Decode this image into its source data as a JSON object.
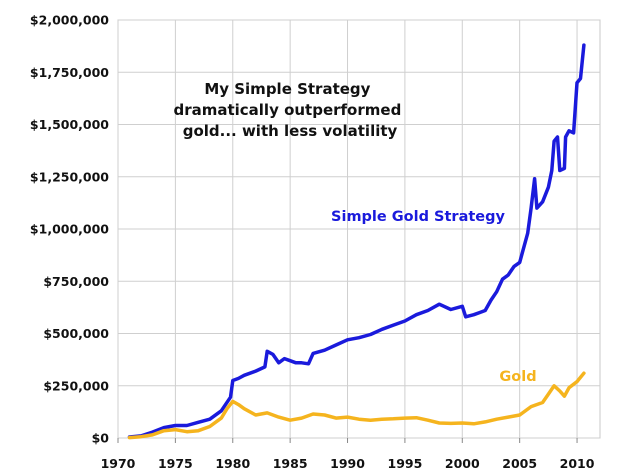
{
  "chart_data": {
    "type": "line",
    "title": "",
    "xlabel": "",
    "ylabel": "",
    "xlim": [
      1970,
      2012
    ],
    "ylim": [
      0,
      2000000
    ],
    "grid": true,
    "x_ticks": [
      1970,
      1975,
      1980,
      1985,
      1990,
      1995,
      2000,
      2005,
      2010
    ],
    "x_tick_labels": [
      "1970",
      "1975",
      "1980",
      "1985",
      "1990",
      "1995",
      "2000",
      "2005",
      "2010"
    ],
    "y_ticks": [
      0,
      250000,
      500000,
      750000,
      1000000,
      1250000,
      1500000,
      1750000,
      2000000
    ],
    "y_tick_labels": [
      "$0",
      "$250,000",
      "$500,000",
      "$750,000",
      "$1,000,000",
      "$1,250,000",
      "$1,500,000",
      "$1,750,000",
      "$2,000,000"
    ],
    "annotation": [
      "My Simple Strategy",
      "dramatically outperformed",
      "gold... with less volatility"
    ],
    "series": [
      {
        "name": "Simple Gold Strategy",
        "color": "#1a1adc",
        "points": [
          [
            1971,
            5000
          ],
          [
            1972,
            10000
          ],
          [
            1973,
            28000
          ],
          [
            1974,
            50000
          ],
          [
            1975,
            60000
          ],
          [
            1976,
            60000
          ],
          [
            1977,
            75000
          ],
          [
            1978,
            90000
          ],
          [
            1979,
            130000
          ],
          [
            1979.8,
            195000
          ],
          [
            1980.0,
            275000
          ],
          [
            1980.5,
            285000
          ],
          [
            1981,
            300000
          ],
          [
            1982,
            320000
          ],
          [
            1982.8,
            340000
          ],
          [
            1983.0,
            415000
          ],
          [
            1983.5,
            400000
          ],
          [
            1984,
            360000
          ],
          [
            1984.5,
            380000
          ],
          [
            1985,
            370000
          ],
          [
            1985.5,
            360000
          ],
          [
            1986,
            360000
          ],
          [
            1986.6,
            355000
          ],
          [
            1987,
            405000
          ],
          [
            1988,
            420000
          ],
          [
            1989,
            445000
          ],
          [
            1990,
            470000
          ],
          [
            1991,
            480000
          ],
          [
            1992,
            495000
          ],
          [
            1993,
            520000
          ],
          [
            1994,
            540000
          ],
          [
            1995,
            560000
          ],
          [
            1996,
            590000
          ],
          [
            1997,
            610000
          ],
          [
            1998,
            640000
          ],
          [
            1999,
            615000
          ],
          [
            2000,
            630000
          ],
          [
            2000.3,
            580000
          ],
          [
            2001,
            590000
          ],
          [
            2001.5,
            600000
          ],
          [
            2002,
            610000
          ],
          [
            2002.5,
            660000
          ],
          [
            2003,
            700000
          ],
          [
            2003.5,
            760000
          ],
          [
            2004,
            780000
          ],
          [
            2004.5,
            820000
          ],
          [
            2005,
            840000
          ],
          [
            2005.3,
            900000
          ],
          [
            2005.7,
            980000
          ],
          [
            2006.0,
            1100000
          ],
          [
            2006.3,
            1240000
          ],
          [
            2006.5,
            1100000
          ],
          [
            2007,
            1130000
          ],
          [
            2007.5,
            1200000
          ],
          [
            2007.8,
            1280000
          ],
          [
            2008.0,
            1420000
          ],
          [
            2008.3,
            1440000
          ],
          [
            2008.5,
            1280000
          ],
          [
            2008.9,
            1290000
          ],
          [
            2009.0,
            1440000
          ],
          [
            2009.3,
            1470000
          ],
          [
            2009.7,
            1460000
          ],
          [
            2010.0,
            1700000
          ],
          [
            2010.3,
            1720000
          ],
          [
            2010.6,
            1880000
          ]
        ]
      },
      {
        "name": "Gold",
        "color": "#f5b41e",
        "points": [
          [
            1971,
            2000
          ],
          [
            1972,
            6000
          ],
          [
            1973,
            15000
          ],
          [
            1974,
            35000
          ],
          [
            1975,
            40000
          ],
          [
            1976,
            30000
          ],
          [
            1977,
            35000
          ],
          [
            1978,
            55000
          ],
          [
            1979,
            95000
          ],
          [
            1979.5,
            140000
          ],
          [
            1980.0,
            175000
          ],
          [
            1980.5,
            160000
          ],
          [
            1981,
            140000
          ],
          [
            1982,
            110000
          ],
          [
            1983,
            120000
          ],
          [
            1984,
            100000
          ],
          [
            1985,
            85000
          ],
          [
            1986,
            95000
          ],
          [
            1987,
            115000
          ],
          [
            1988,
            110000
          ],
          [
            1989,
            95000
          ],
          [
            1990,
            100000
          ],
          [
            1991,
            90000
          ],
          [
            1992,
            85000
          ],
          [
            1993,
            90000
          ],
          [
            1994,
            92000
          ],
          [
            1995,
            95000
          ],
          [
            1996,
            97000
          ],
          [
            1997,
            85000
          ],
          [
            1998,
            72000
          ],
          [
            1999,
            70000
          ],
          [
            2000,
            72000
          ],
          [
            2001,
            68000
          ],
          [
            2002,
            77000
          ],
          [
            2003,
            90000
          ],
          [
            2004,
            100000
          ],
          [
            2005,
            110000
          ],
          [
            2006,
            150000
          ],
          [
            2007,
            170000
          ],
          [
            2007.5,
            210000
          ],
          [
            2008.0,
            250000
          ],
          [
            2008.5,
            225000
          ],
          [
            2008.9,
            200000
          ],
          [
            2009.3,
            240000
          ],
          [
            2010,
            270000
          ],
          [
            2010.6,
            310000
          ]
        ]
      }
    ]
  }
}
